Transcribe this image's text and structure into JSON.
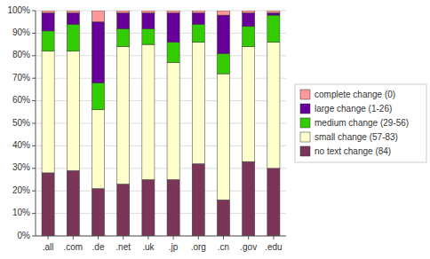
{
  "chart_data": {
    "type": "bar",
    "stacked": true,
    "categories": [
      ".all",
      ".com",
      ".de",
      ".net",
      ".uk",
      ".jp",
      ".org",
      ".cn",
      ".gov",
      ".edu"
    ],
    "series": [
      {
        "name": "no text change (84)",
        "color": "#7B3558",
        "values": [
          28,
          29,
          21,
          23,
          25,
          25,
          32,
          16,
          33,
          30
        ]
      },
      {
        "name": "small change (57-83)",
        "color": "#FFFFCC",
        "values": [
          54,
          53,
          35,
          61,
          60,
          52,
          54,
          56,
          51,
          56
        ]
      },
      {
        "name": "medium change (29-56)",
        "color": "#33CC00",
        "values": [
          9,
          12,
          12,
          8,
          7,
          9,
          8,
          9,
          9,
          12
        ]
      },
      {
        "name": "large change (1-26)",
        "color": "#660099",
        "values": [
          8,
          5,
          27,
          7,
          7,
          13,
          5,
          17,
          6,
          1
        ]
      },
      {
        "name": "complete change (0)",
        "color": "#FF9999",
        "values": [
          1,
          1,
          5,
          1,
          1,
          1,
          1,
          2,
          1,
          1
        ]
      }
    ],
    "ylim": [
      0,
      100
    ],
    "yticks": [
      {
        "value": 0,
        "label": "0%"
      },
      {
        "value": 10,
        "label": "10%"
      },
      {
        "value": 20,
        "label": "20%"
      },
      {
        "value": 30,
        "label": "30%"
      },
      {
        "value": 40,
        "label": "40%"
      },
      {
        "value": 50,
        "label": "50%"
      },
      {
        "value": 60,
        "label": "60%"
      },
      {
        "value": 70,
        "label": "70%"
      },
      {
        "value": 80,
        "label": "80%"
      },
      {
        "value": 90,
        "label": "90%"
      },
      {
        "value": 100,
        "label": "100%"
      }
    ],
    "grid": true,
    "legend": "right"
  }
}
